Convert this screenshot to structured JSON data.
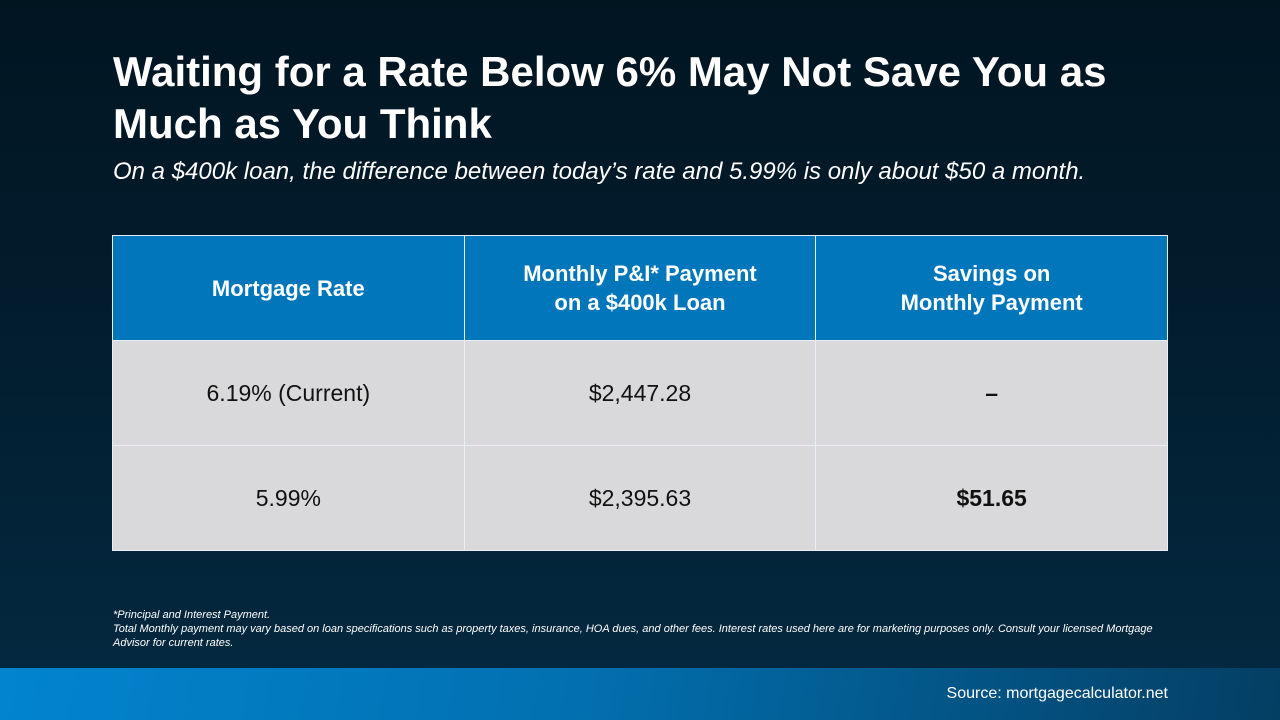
{
  "title": "Waiting for a Rate Below 6% May Not Save You as Much as You Think",
  "subtitle": "On a $400k loan, the difference between today’s rate and 5.99% is only about $50 a month.",
  "table": {
    "headers": [
      [
        "Mortgage Rate",
        ""
      ],
      [
        "Monthly P&I* Payment",
        "on a $400k Loan"
      ],
      [
        "Savings on",
        "Monthly Payment"
      ]
    ],
    "rows": [
      [
        "6.19% (Current)",
        "$2,447.28",
        "–"
      ],
      [
        "5.99%",
        "$2,395.63",
        "$51.65"
      ]
    ]
  },
  "footnote": {
    "line1": "*Principal and Interest Payment.",
    "line2": "Total Monthly payment may vary based on loan specifications such as property taxes, insurance, HOA dues, and other fees. Interest rates used here are for marketing purposes only. Consult your licensed Mortgage Advisor for current rates."
  },
  "source": "Source: mortgagecalculator.net",
  "colors": {
    "header": "#0176bb",
    "cell": "#d9d9db",
    "background": "#011521"
  }
}
